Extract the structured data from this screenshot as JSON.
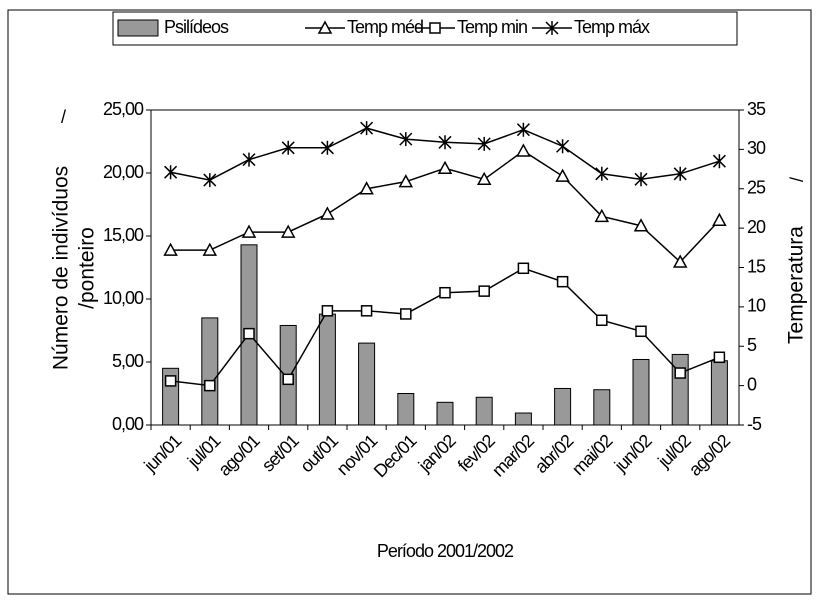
{
  "chart_data": {
    "type": "combo",
    "x_label": "Período 2001/2002",
    "y_label": [
      "Número de indivíduos",
      "/ponteiro"
    ],
    "y2_label": "Temperatura",
    "annotations": [
      "/",
      "/"
    ],
    "categories": [
      "jun/01",
      "jul/01",
      "ago/01",
      "set/01",
      "out/01",
      "nov/01",
      "Dec/01",
      "jan/02",
      "fev/02",
      "mar/02",
      "abr/02",
      "mai/02",
      "jun/02",
      "jul/02",
      "ago/02"
    ],
    "series": [
      {
        "name": "Psilídeos",
        "type": "bar",
        "color": "#999999",
        "values": [
          4.5,
          8.5,
          14.3,
          7.9,
          8.8,
          6.5,
          2.5,
          1.8,
          2.2,
          0.95,
          2.9,
          2.8,
          5.2,
          5.6,
          5.1
        ]
      },
      {
        "name": "Temp méd",
        "type": "line",
        "marker": "triangle",
        "axis": "y2",
        "color": "#000000",
        "values": [
          17.2,
          17.2,
          19.5,
          19.5,
          21.8,
          25.0,
          25.9,
          27.6,
          26.2,
          29.8,
          26.6,
          21.5,
          20.3,
          15.7,
          21.0
        ]
      },
      {
        "name": "Temp min",
        "type": "line",
        "marker": "square",
        "axis": "y2",
        "color": "#000000",
        "values": [
          0.6,
          0.0,
          6.6,
          0.8,
          9.5,
          9.5,
          9.1,
          11.8,
          12.0,
          14.9,
          13.2,
          8.3,
          6.9,
          1.6,
          3.6
        ]
      },
      {
        "name": "Temp máx",
        "type": "line",
        "marker": "star",
        "axis": "y2",
        "color": "#000000",
        "values": [
          27.1,
          26.1,
          28.7,
          30.2,
          30.2,
          32.7,
          31.3,
          30.9,
          30.7,
          32.5,
          30.4,
          26.9,
          26.2,
          26.9,
          28.5
        ]
      }
    ],
    "ylim": [
      0,
      25
    ],
    "yticks": [
      {
        "value": 0,
        "label": "0,00"
      },
      {
        "value": 5,
        "label": "5,00"
      },
      {
        "value": 10,
        "label": "10,00"
      },
      {
        "value": 15,
        "label": "15,00"
      },
      {
        "value": 20,
        "label": "20,00"
      },
      {
        "value": 25,
        "label": "25,00"
      }
    ],
    "y2lim": [
      -5,
      35
    ],
    "y2ticks": [
      -5,
      0,
      5,
      10,
      15,
      20,
      25,
      30,
      35
    ],
    "grid": false,
    "legend": "top"
  }
}
